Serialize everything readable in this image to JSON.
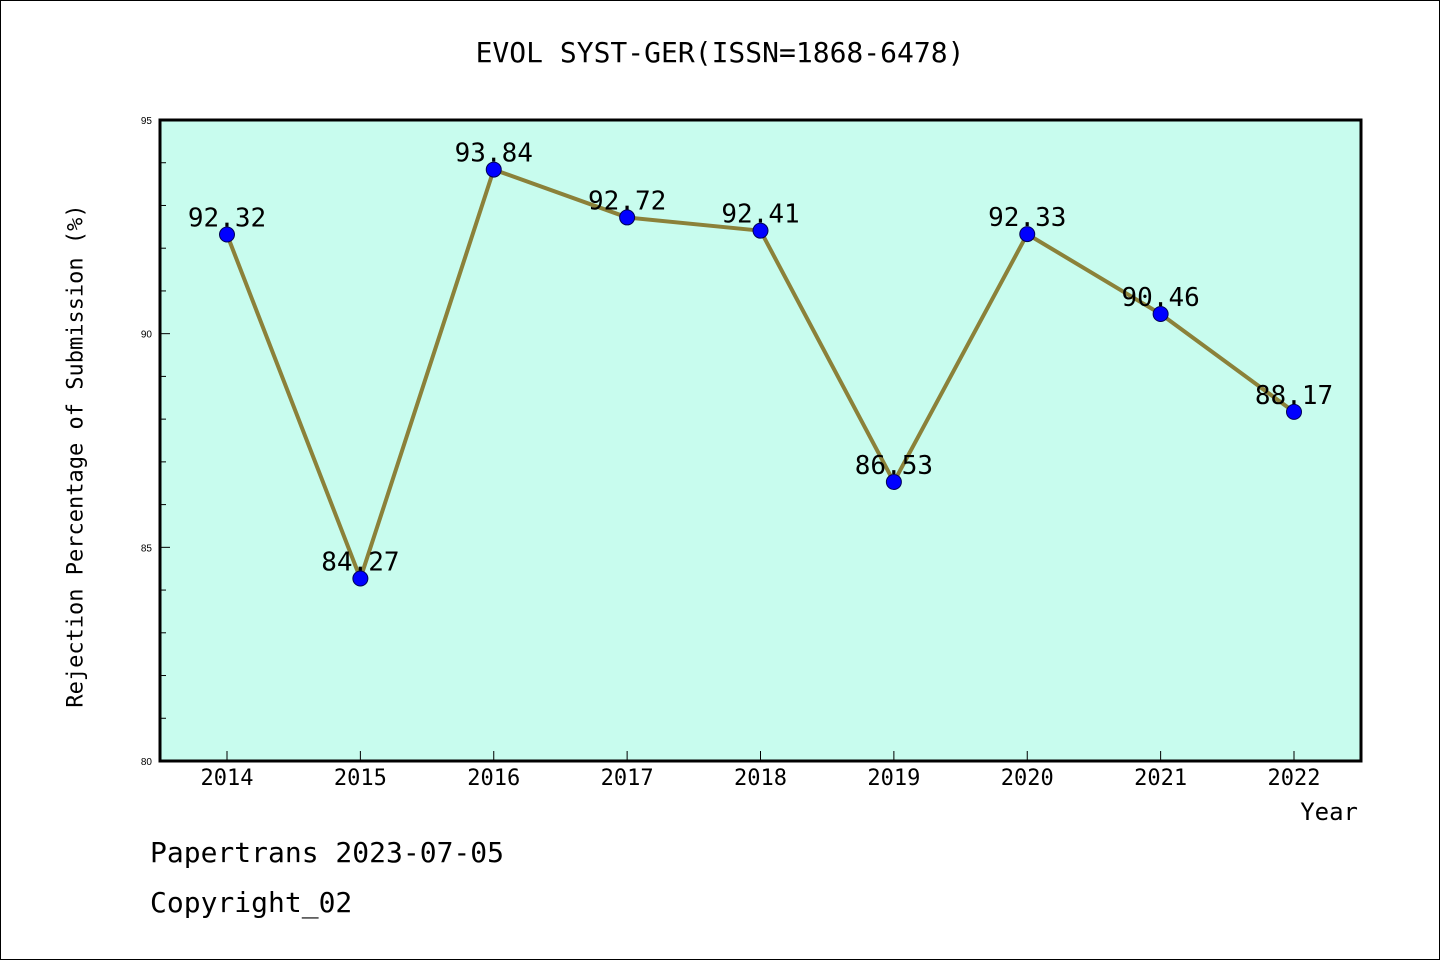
{
  "chart_data": {
    "type": "line",
    "title": "EVOL SYST-GER(ISSN=1868-6478)",
    "xlabel": "Year",
    "ylabel": "Rejection Percentage of Submission (%)",
    "categories": [
      "2014",
      "2015",
      "2016",
      "2017",
      "2018",
      "2019",
      "2020",
      "2021",
      "2022"
    ],
    "values": [
      92.32,
      84.27,
      93.84,
      92.72,
      92.41,
      86.53,
      92.33,
      90.46,
      88.17
    ],
    "value_labels": [
      "92.32",
      "84.27",
      "93.84",
      "92.72",
      "92.41",
      "86.53",
      "92.33",
      "90.46",
      "88.17"
    ],
    "ylim": [
      80,
      95
    ],
    "yticks": [
      "80",
      "85",
      "90",
      "95"
    ],
    "grid": false,
    "line_color": "#8b8139",
    "marker_color": "#0000ff",
    "plot_background": "#c8fcee"
  },
  "footer": {
    "line1": "Papertrans 2023-07-05",
    "line2": "Copyright_02"
  }
}
